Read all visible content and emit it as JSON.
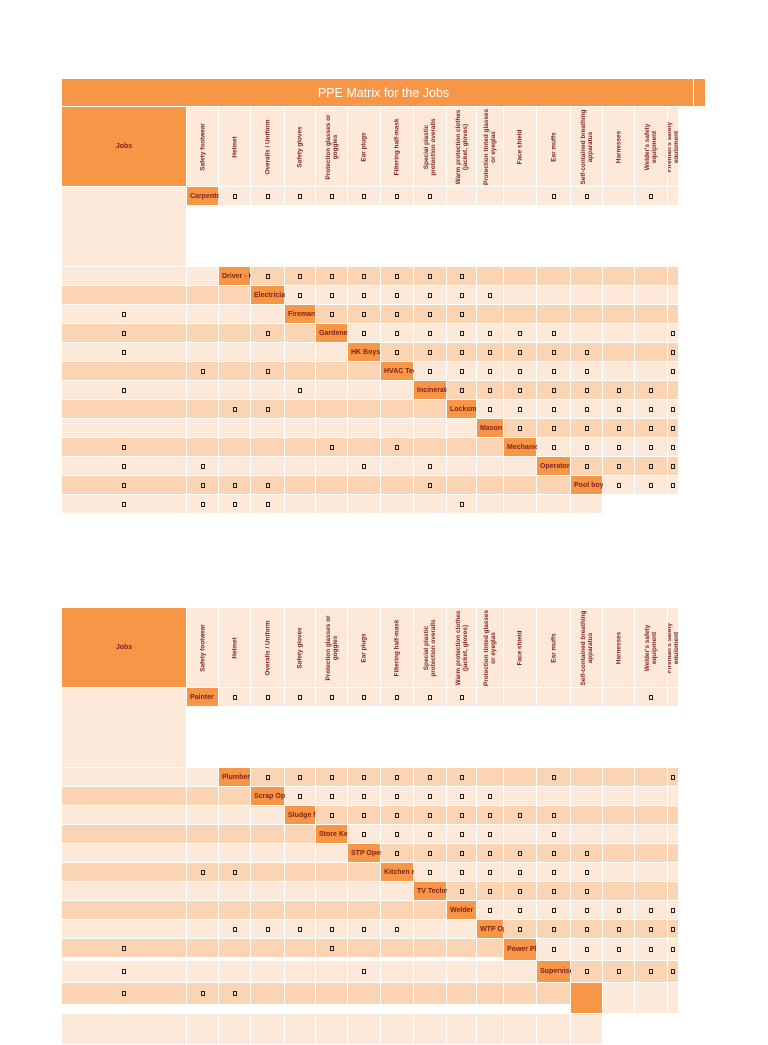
{
  "title": "PPE Matrix for the Jobs",
  "jobs_header": "Jobs",
  "columns": [
    "Safety footwear",
    "Helmet",
    "Overalls / Uniform",
    "Safety gloves",
    "Protection glasses or goggles",
    "Ear plugs",
    "Filtering half-mask",
    "Special plastic protection overalls",
    "Warm protection clothes (jacket, gloves)",
    "Protection tinted glasses or eyeglas",
    "Face shield",
    "Ear muffs",
    "Self-contained breathing apparatus",
    "Harnesses",
    "Welder's safety equipment",
    "Fireman's safety equipment"
  ],
  "table1_rows": [
    {
      "job": "Carpenter",
      "marks": [
        0,
        1,
        2,
        3,
        4,
        5,
        6,
        10,
        11,
        13
      ]
    },
    {
      "job": "Driver - HD and LV -",
      "marks": [
        0,
        1,
        2,
        3,
        4,
        5,
        6
      ]
    },
    {
      "job": "Electrician",
      "marks": [
        0,
        1,
        2,
        3,
        4,
        5,
        6,
        13
      ]
    },
    {
      "job": "Fireman",
      "marks": [
        0,
        1,
        2,
        3,
        4,
        12,
        15
      ]
    },
    {
      "job": "Gardener",
      "marks": [
        0,
        1,
        2,
        3,
        4,
        5,
        6,
        10,
        11
      ]
    },
    {
      "job": "HK Boys / CHM / MPW",
      "marks": [
        0,
        1,
        2,
        3,
        4,
        5,
        6,
        9,
        11,
        13
      ]
    },
    {
      "job": "HVAC Technician",
      "marks": [
        0,
        1,
        2,
        3,
        4,
        5,
        8,
        9,
        13
      ]
    },
    {
      "job": "Incinerator Operator",
      "marks": [
        0,
        1,
        2,
        3,
        4,
        5,
        6,
        10,
        11
      ]
    },
    {
      "job": "Locksmith",
      "marks": [
        0,
        1,
        2,
        3,
        4,
        5,
        6
      ]
    },
    {
      "job": "Mason",
      "marks": [
        0,
        1,
        2,
        3,
        4,
        5,
        6,
        11,
        13
      ]
    },
    {
      "job": "Mechanic",
      "marks": [
        0,
        1,
        2,
        3,
        4,
        5,
        6,
        11,
        13
      ]
    },
    {
      "job": "Operator for pest control",
      "marks": [
        0,
        1,
        2,
        3,
        4,
        5,
        6,
        7,
        12
      ]
    },
    {
      "job": "Pool boy",
      "marks": [
        0,
        1,
        2,
        3,
        4,
        5,
        6,
        12
      ]
    }
  ],
  "table2_rows": [
    {
      "job": "Painter",
      "marks": [
        0,
        1,
        2,
        3,
        4,
        5,
        6,
        7,
        13
      ]
    },
    {
      "job": "Plumber",
      "marks": [
        0,
        1,
        2,
        3,
        4,
        5,
        6,
        9,
        13
      ]
    },
    {
      "job": "Scrap Operator",
      "marks": [
        0,
        1,
        2,
        3,
        4,
        5,
        6
      ]
    },
    {
      "job": "Sludge farm Operator",
      "marks": [
        0,
        1,
        2,
        3,
        4,
        5,
        6,
        7
      ]
    },
    {
      "job": "Store Keeper",
      "marks": [
        0,
        1,
        2,
        3,
        4,
        6
      ]
    },
    {
      "job": "STP Operator",
      "marks": [
        0,
        1,
        2,
        3,
        4,
        5,
        6,
        11,
        12
      ]
    },
    {
      "job": "Kitchen equipment Technician",
      "marks": [
        0,
        1,
        2,
        3,
        4,
        5
      ]
    },
    {
      "job": "TV Technician",
      "marks": [
        0,
        1,
        2,
        3,
        4
      ]
    },
    {
      "job": "Welder",
      "marks": [
        0,
        1,
        2,
        3,
        4,
        5,
        6,
        9,
        10,
        11,
        12,
        13,
        14
      ]
    },
    {
      "job": "WTP Operator",
      "marks": [
        0,
        1,
        2,
        3,
        4,
        5,
        6,
        11
      ]
    },
    {
      "job": "Power Plant Operator",
      "marks": [
        0,
        1,
        2,
        3,
        4,
        5,
        11
      ]
    },
    {
      "job": "Supervisor",
      "marks": [
        0,
        1,
        2,
        3,
        4,
        5,
        6
      ]
    },
    {
      "job": "",
      "marks": []
    }
  ]
}
